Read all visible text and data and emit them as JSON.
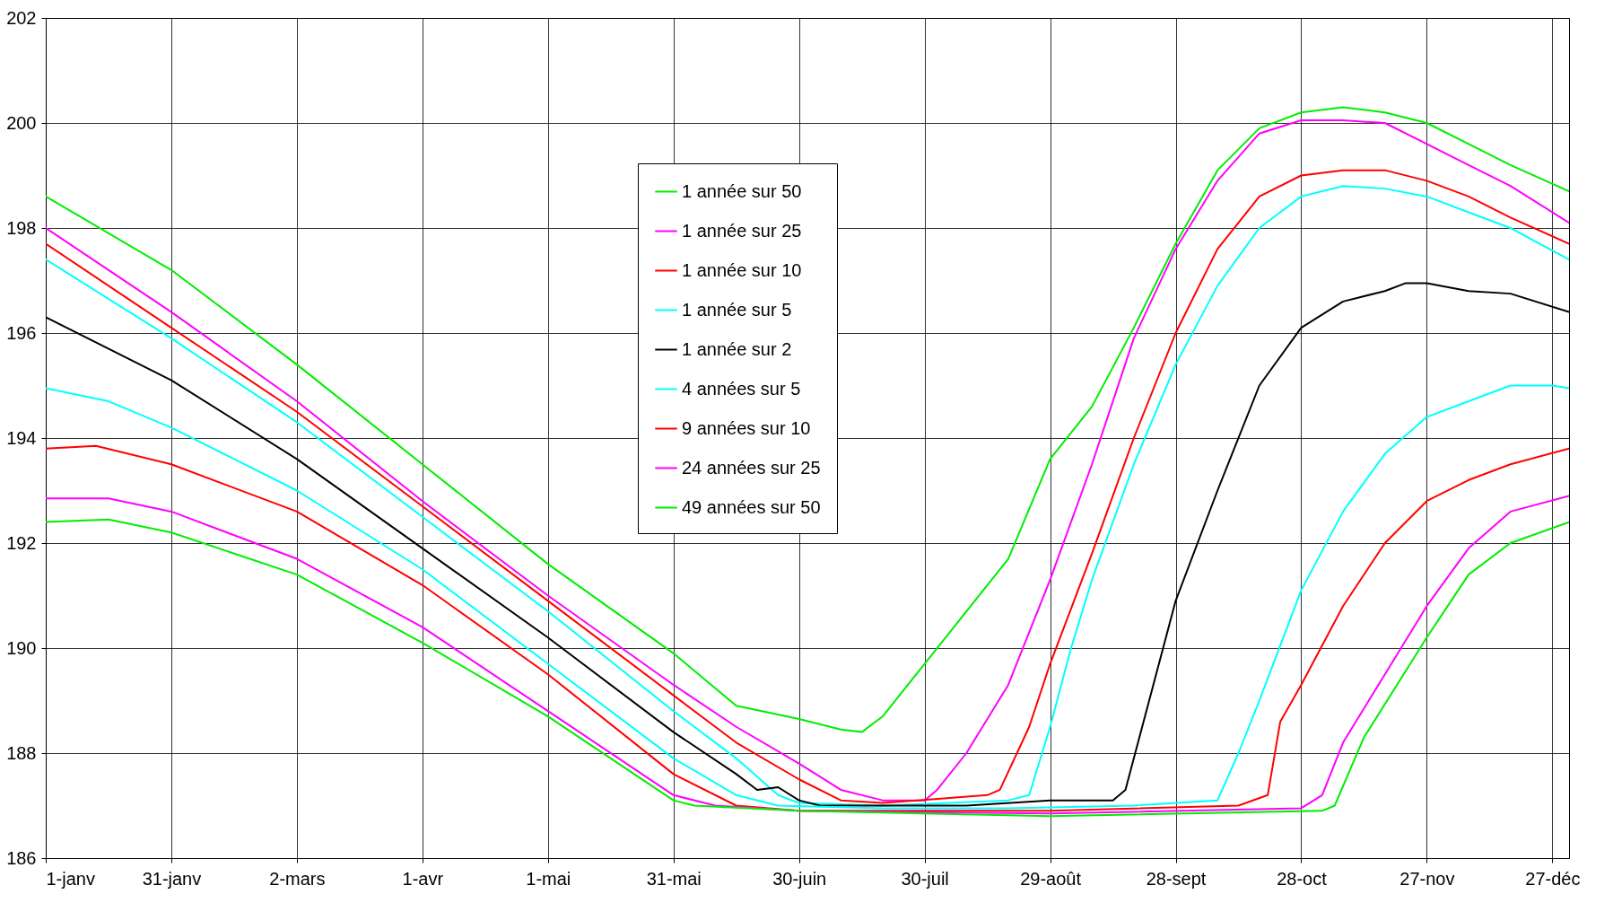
{
  "chart_data": {
    "type": "line",
    "xlim": [
      "--01-01",
      "--12-31"
    ],
    "xticks": [
      {
        "value": "--01-01",
        "label": "1-janv"
      },
      {
        "value": "--01-31",
        "label": "31-janv"
      },
      {
        "value": "--03-02",
        "label": "2-mars"
      },
      {
        "value": "--04-01",
        "label": "1-avr"
      },
      {
        "value": "--05-01",
        "label": "1-mai"
      },
      {
        "value": "--05-31",
        "label": "31-mai"
      },
      {
        "value": "--06-30",
        "label": "30-juin"
      },
      {
        "value": "--07-30",
        "label": "30-juil"
      },
      {
        "value": "--08-29",
        "label": "29-août"
      },
      {
        "value": "--09-28",
        "label": "28-sept"
      },
      {
        "value": "--10-28",
        "label": "28-oct"
      },
      {
        "value": "--11-27",
        "label": "27-nov"
      },
      {
        "value": "--12-27",
        "label": "27-déc"
      }
    ],
    "ylim": [
      186,
      202
    ],
    "yticks": [
      186,
      188,
      190,
      192,
      194,
      196,
      198,
      200,
      202
    ],
    "grid": true,
    "legend": "top",
    "marker": "none",
    "line_style": "solid",
    "series": [
      {
        "name": "1 année sur 50",
        "color": "#00ee00",
        "x": [
          "--01-01",
          "--01-31",
          "--03-02",
          "--04-01",
          "--05-01",
          "--05-31",
          "--06-15",
          "--06-30",
          "--07-10",
          "--07-15",
          "--07-20",
          "--07-30",
          "--08-09",
          "--08-19",
          "--08-29",
          "--09-08",
          "--09-18",
          "--09-28",
          "--10-08",
          "--10-18",
          "--10-28",
          "--11-07",
          "--11-17",
          "--11-27",
          "--12-07",
          "--12-17",
          "--12-31"
        ],
        "values": [
          198.6,
          197.2,
          195.4,
          193.5,
          191.6,
          189.9,
          188.9,
          188.65,
          188.45,
          188.4,
          188.7,
          189.7,
          190.7,
          191.7,
          193.6,
          194.6,
          196.1,
          197.7,
          199.1,
          199.9,
          200.2,
          200.3,
          200.2,
          200.0,
          199.6,
          199.2,
          198.7
        ]
      },
      {
        "name": "1 année sur 25",
        "color": "#ff00ff",
        "x": [
          "--01-01",
          "--01-31",
          "--03-02",
          "--04-01",
          "--05-01",
          "--05-31",
          "--06-15",
          "--06-30",
          "--07-10",
          "--07-20",
          "--07-30",
          "--08-02",
          "--08-09",
          "--08-19",
          "--08-29",
          "--09-08",
          "--09-18",
          "--09-28",
          "--10-08",
          "--10-18",
          "--10-28",
          "--11-07",
          "--11-17",
          "--11-27",
          "--12-07",
          "--12-17",
          "--12-31"
        ],
        "values": [
          198.0,
          196.4,
          194.7,
          192.8,
          191.0,
          189.3,
          188.5,
          187.8,
          187.3,
          187.1,
          187.1,
          187.3,
          188.0,
          189.3,
          191.3,
          193.5,
          195.9,
          197.6,
          198.9,
          199.8,
          200.05,
          200.05,
          200.0,
          199.6,
          199.2,
          198.8,
          198.1
        ]
      },
      {
        "name": "1 année sur 10",
        "color": "#ff0000",
        "x": [
          "--01-01",
          "--01-31",
          "--03-02",
          "--04-01",
          "--05-01",
          "--05-31",
          "--06-15",
          "--06-30",
          "--07-10",
          "--07-20",
          "--08-14",
          "--08-17",
          "--08-24",
          "--08-29",
          "--09-08",
          "--09-18",
          "--09-28",
          "--10-08",
          "--10-18",
          "--10-28",
          "--11-07",
          "--11-17",
          "--11-27",
          "--12-07",
          "--12-17",
          "--12-31"
        ],
        "values": [
          197.7,
          196.1,
          194.5,
          192.7,
          190.9,
          189.1,
          188.2,
          187.5,
          187.1,
          187.05,
          187.2,
          187.3,
          188.5,
          189.7,
          191.8,
          194.0,
          196.0,
          197.6,
          198.6,
          199.0,
          199.1,
          199.1,
          198.9,
          198.6,
          198.2,
          197.7
        ]
      },
      {
        "name": "1 année sur 5",
        "color": "#00ffff",
        "x": [
          "--01-01",
          "--01-31",
          "--03-02",
          "--04-01",
          "--05-01",
          "--05-31",
          "--06-15",
          "--06-25",
          "--06-30",
          "--07-20",
          "--08-19",
          "--08-24",
          "--08-29",
          "--09-03",
          "--09-08",
          "--09-18",
          "--09-28",
          "--10-08",
          "--10-18",
          "--10-28",
          "--11-07",
          "--11-17",
          "--11-27",
          "--12-07",
          "--12-17",
          "--12-31"
        ],
        "values": [
          197.4,
          195.9,
          194.3,
          192.5,
          190.7,
          188.8,
          187.9,
          187.2,
          187.05,
          187.0,
          187.1,
          187.2,
          188.5,
          190.0,
          191.3,
          193.5,
          195.4,
          196.9,
          198.0,
          198.6,
          198.8,
          198.75,
          198.6,
          198.3,
          198.0,
          197.4
        ]
      },
      {
        "name": "1 année sur 2",
        "color": "#000000",
        "x": [
          "--01-01",
          "--01-31",
          "--03-02",
          "--04-01",
          "--05-01",
          "--05-31",
          "--06-15",
          "--06-20",
          "--06-25",
          "--06-30",
          "--07-05",
          "--07-20",
          "--08-09",
          "--08-29",
          "--09-13",
          "--09-16",
          "--09-20",
          "--09-28",
          "--10-08",
          "--10-18",
          "--10-28",
          "--11-07",
          "--11-17",
          "--11-22",
          "--11-27",
          "--12-07",
          "--12-17",
          "--12-31"
        ],
        "values": [
          196.3,
          195.1,
          193.6,
          191.9,
          190.2,
          188.4,
          187.6,
          187.3,
          187.35,
          187.1,
          187.0,
          187.0,
          187.0,
          187.1,
          187.1,
          187.3,
          188.5,
          190.9,
          193.0,
          195.0,
          196.1,
          196.6,
          196.8,
          196.95,
          196.95,
          196.8,
          196.75,
          196.4
        ]
      },
      {
        "name": "4 années sur 5",
        "color": "#00ffff",
        "x": [
          "--01-01",
          "--01-16",
          "--01-31",
          "--03-02",
          "--04-01",
          "--05-01",
          "--05-31",
          "--06-15",
          "--06-25",
          "--07-20",
          "--08-19",
          "--09-18",
          "--10-08",
          "--10-13",
          "--10-18",
          "--10-28",
          "--11-07",
          "--11-17",
          "--11-27",
          "--12-07",
          "--12-17",
          "--12-27",
          "--12-31"
        ],
        "values": [
          194.95,
          194.7,
          194.2,
          193.0,
          191.5,
          189.7,
          187.9,
          187.2,
          187.0,
          186.95,
          186.95,
          187.0,
          187.1,
          188.0,
          189.0,
          191.1,
          192.6,
          193.7,
          194.4,
          194.7,
          195.0,
          195.0,
          194.95
        ]
      },
      {
        "name": "9 années sur 10",
        "color": "#ff0000",
        "x": [
          "--01-01",
          "--01-13",
          "--01-31",
          "--03-02",
          "--04-01",
          "--05-01",
          "--05-31",
          "--06-15",
          "--06-30",
          "--08-29",
          "--10-13",
          "--10-20",
          "--10-23",
          "--10-28",
          "--11-07",
          "--11-17",
          "--11-27",
          "--12-07",
          "--12-17",
          "--12-31"
        ],
        "values": [
          193.8,
          193.85,
          193.5,
          192.6,
          191.2,
          189.5,
          187.6,
          187.0,
          186.9,
          186.9,
          187.0,
          187.2,
          188.6,
          189.3,
          190.8,
          192.0,
          192.8,
          193.2,
          193.5,
          193.8
        ]
      },
      {
        "name": "24 années sur 25",
        "color": "#ff00ff",
        "x": [
          "--01-01",
          "--01-16",
          "--01-31",
          "--03-02",
          "--04-01",
          "--05-01",
          "--05-31",
          "--06-10",
          "--06-30",
          "--08-29",
          "--10-28",
          "--11-02",
          "--11-07",
          "--11-17",
          "--11-27",
          "--12-07",
          "--12-17",
          "--12-31"
        ],
        "values": [
          192.85,
          192.85,
          192.6,
          191.7,
          190.4,
          188.8,
          187.2,
          187.0,
          186.9,
          186.85,
          186.95,
          187.2,
          188.2,
          189.5,
          190.8,
          191.9,
          192.6,
          192.9
        ]
      },
      {
        "name": "49 années sur 50",
        "color": "#00ee00",
        "x": [
          "--01-01",
          "--01-16",
          "--01-31",
          "--03-02",
          "--04-01",
          "--05-01",
          "--05-31",
          "--06-05",
          "--06-30",
          "--08-29",
          "--11-02",
          "--11-05",
          "--11-12",
          "--11-27",
          "--12-07",
          "--12-17",
          "--12-31"
        ],
        "values": [
          192.4,
          192.45,
          192.2,
          191.4,
          190.1,
          188.7,
          187.1,
          187.0,
          186.9,
          186.8,
          186.9,
          187.0,
          188.3,
          190.2,
          191.4,
          192.0,
          192.4
        ]
      }
    ]
  }
}
